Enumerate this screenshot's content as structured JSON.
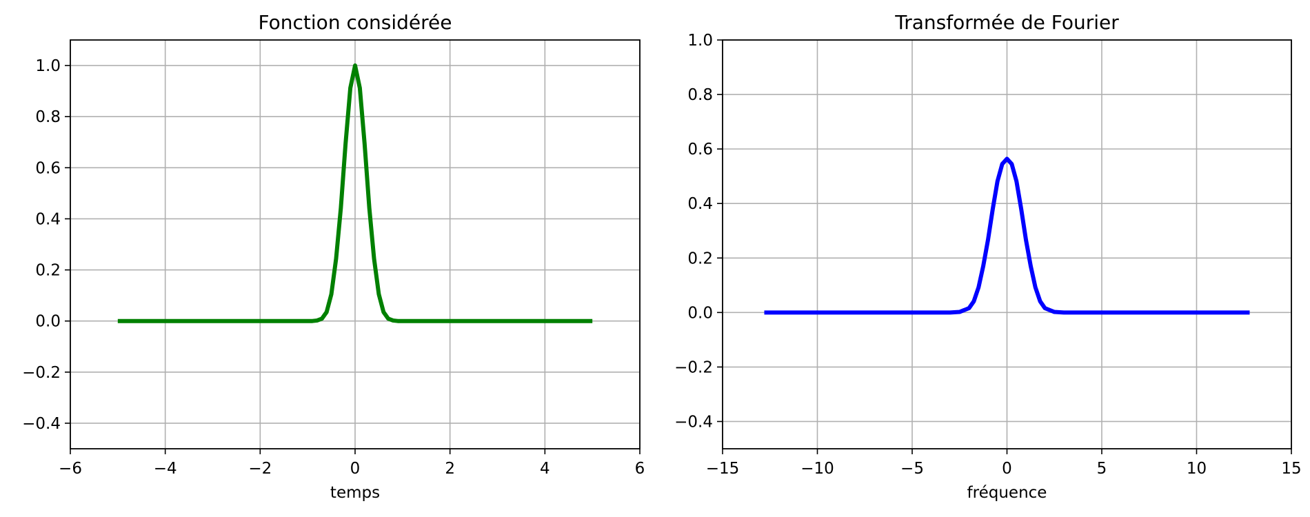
{
  "chart_data": [
    {
      "type": "line",
      "title": "Fonction considérée",
      "xlabel": "temps",
      "ylabel": "",
      "xlim": [
        -6,
        6
      ],
      "ylim": [
        -0.5,
        1.1
      ],
      "xticks": [
        -6,
        -4,
        -2,
        0,
        2,
        4,
        6
      ],
      "yticks": [
        -0.4,
        -0.2,
        0.0,
        0.2,
        0.4,
        0.6,
        0.8,
        1.0
      ],
      "xtick_labels": [
        "−6",
        "−4",
        "−2",
        "0",
        "2",
        "4",
        "6"
      ],
      "ytick_labels": [
        "−0.4",
        "−0.2",
        "0.0",
        "0.2",
        "0.4",
        "0.6",
        "0.8",
        "1.0"
      ],
      "grid": true,
      "series": [
        {
          "color": "#008000",
          "x": [
            -5.0,
            -2.0,
            -1.0,
            -0.9,
            -0.8,
            -0.7,
            -0.6,
            -0.5,
            -0.4,
            -0.3,
            -0.2,
            -0.1,
            0.0,
            0.1,
            0.2,
            0.3,
            0.4,
            0.5,
            0.6,
            0.7,
            0.8,
            0.9,
            1.0,
            2.0,
            5.0
          ],
          "y": [
            0.0,
            0.0,
            0.0,
            0.0,
            0.002,
            0.009,
            0.035,
            0.105,
            0.244,
            0.442,
            0.695,
            0.912,
            1.0,
            0.912,
            0.695,
            0.442,
            0.244,
            0.105,
            0.035,
            0.009,
            0.002,
            0.0,
            0.0,
            0.0,
            0.0
          ]
        }
      ]
    },
    {
      "type": "line",
      "title": "Transformée de Fourier",
      "xlabel": "fréquence",
      "ylabel": "",
      "xlim": [
        -15,
        15
      ],
      "ylim": [
        -0.5,
        1.0
      ],
      "xticks": [
        -15,
        -10,
        -5,
        0,
        5,
        10,
        15
      ],
      "yticks": [
        -0.4,
        -0.2,
        0.0,
        0.2,
        0.4,
        0.6,
        0.8,
        1.0
      ],
      "xtick_labels": [
        "−15",
        "−10",
        "−5",
        "0",
        "5",
        "10",
        "15"
      ],
      "ytick_labels": [
        "−0.4",
        "−0.2",
        "0.0",
        "0.2",
        "0.4",
        "0.6",
        "0.8",
        "1.0"
      ],
      "grid": true,
      "series": [
        {
          "color": "#0000ff",
          "x": [
            -12.8,
            -5.0,
            -3.0,
            -2.5,
            -2.0,
            -1.75,
            -1.5,
            -1.25,
            -1.0,
            -0.75,
            -0.5,
            -0.25,
            0.0,
            0.25,
            0.5,
            0.75,
            1.0,
            1.25,
            1.5,
            1.75,
            2.0,
            2.5,
            3.0,
            5.0,
            12.8
          ],
          "y": [
            0.0,
            0.0,
            0.0,
            0.002,
            0.016,
            0.041,
            0.092,
            0.171,
            0.267,
            0.38,
            0.482,
            0.545,
            0.564,
            0.545,
            0.482,
            0.38,
            0.267,
            0.171,
            0.092,
            0.041,
            0.016,
            0.002,
            0.0,
            0.0,
            0.0
          ]
        }
      ]
    }
  ]
}
